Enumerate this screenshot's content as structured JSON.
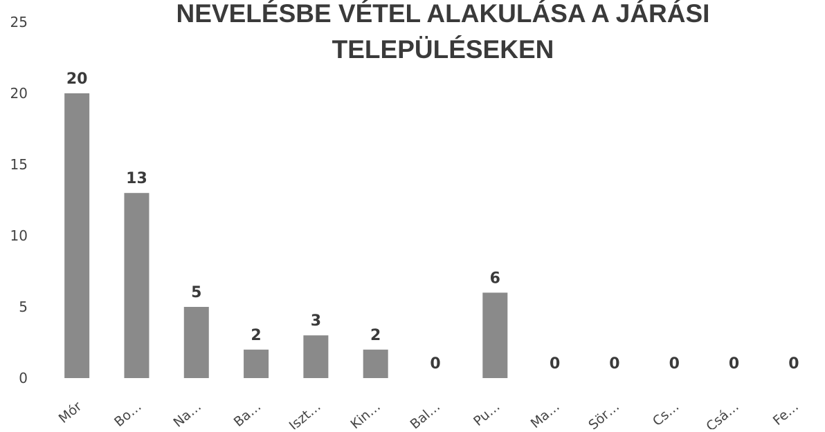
{
  "chart_data": {
    "type": "bar",
    "title": "NEVELÉSBE VÉTEL ALAKULÁSA A JÁRÁSI TELEPÜLÉSEKEN",
    "categories": [
      "Mór",
      "Bo…",
      "Na…",
      "Ba…",
      "Iszt…",
      "Kin…",
      "Bal…",
      "Pu…",
      "Ma…",
      "Sör…",
      "Cs…",
      "Csá…",
      "Fe…"
    ],
    "values": [
      20,
      13,
      5,
      2,
      3,
      2,
      0,
      6,
      0,
      0,
      0,
      0,
      0
    ],
    "color": "#8a8a8a",
    "ylim": [
      0,
      25
    ],
    "yticks": [
      0,
      5,
      10,
      15,
      20,
      25
    ],
    "grid": false
  }
}
